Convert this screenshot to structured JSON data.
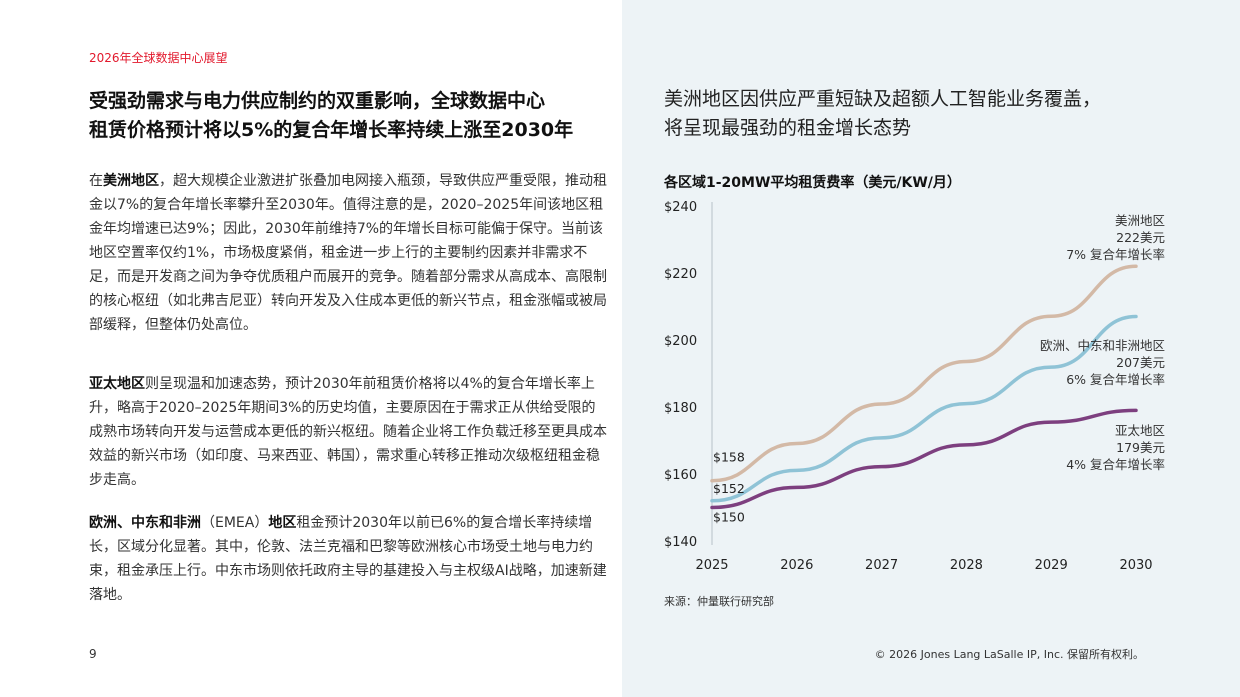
{
  "header": {
    "doc_title": "2026年全球数据中心展望",
    "headline_line1": "受强劲需求与电力供应制约的双重影响，全球数据中心",
    "headline_line2": "租赁价格预计将以5%的复合年增长率持续上涨至2030年"
  },
  "body": {
    "p1_bold": "美洲地区",
    "p1_text": "，超大规模企业激进扩张叠加电网接入瓶颈，导致供应严重受限，推动租金以7%的复合年增长率攀升至2030年。值得注意的是，2020–2025年间该地区租金年均增速已达9%；因此，2030年前维持7%的年增长目标可能偏于保守。当前该地区空置率仅约1%，市场极度紧俏，租金进一步上行的主要制约因素并非需求不足，而是开发商之间为争夺优质租户而展开的竞争。随着部分需求从高成本、高限制的核心枢纽（如北弗吉尼亚）转向开发及入住成本更低的新兴节点，租金涨幅或被局部缓释，但整体仍处高位。",
    "p2_bold": "亚太地区",
    "p2_text": "则呈现温和加速态势，预计2030年前租赁价格将以4%的复合年增长率上升，略高于2020–2025年期间3%的历史均值，主要原因在于需求正从供给受限的成熟市场转向开发与运营成本更低的新兴枢纽。随着企业将工作负载迁移至更具成本效益的新兴市场（如印度、马来西亚、韩国），需求重心转移正推动次级枢纽租金稳步走高。",
    "p3_bold": "欧洲、中东和非洲",
    "p3_mid": "（EMEA）",
    "p3_bold2": "地区",
    "p3_text": "租金预计2030年以前已6%的复合增长率持续增长，区域分化显著。其中，伦敦、法兰克福和巴黎等欧洲核心市场受土地与电力约束，租金承压上行。中东市场则依托政府主导的基建投入与主权级AI战略，加速新建落地。"
  },
  "footer": {
    "page_number": "9",
    "copyright": "© 2026 Jones Lang LaSalle IP, Inc. 保留所有权利。"
  },
  "chart_heading": {
    "line1": "美洲地区因供应严重短缺及超额人工智能业务覆盖，",
    "line2": "将呈现最强劲的租金增长态势"
  },
  "chart_data": {
    "type": "line",
    "title": "各区域1-20MW平均租赁费率（美元/KW/月）",
    "x": [
      "2025",
      "2026",
      "2027",
      "2028",
      "2029",
      "2030"
    ],
    "ylim": [
      140,
      240
    ],
    "yticks": [
      "$140",
      "$160",
      "$180",
      "$200",
      "$220",
      "$240"
    ],
    "grid": false,
    "series": [
      {
        "name": "美洲地区",
        "color": "#d3b9a6",
        "values": [
          158,
          169.1,
          180.9,
          193.6,
          207.1,
          222
        ],
        "start_label": "$158",
        "annotation": [
          "美洲地区",
          "222美元",
          "7% 复合年增长率"
        ]
      },
      {
        "name": "欧洲、中东和非洲地区",
        "color": "#8fc3d6",
        "values": [
          152,
          161.1,
          170.8,
          181.0,
          191.9,
          207
        ],
        "start_label": "$152",
        "annotation": [
          "欧洲、中东和非洲地区",
          "207美元",
          "6% 复合年增长率"
        ]
      },
      {
        "name": "亚太地区",
        "color": "#7d3f7f",
        "values": [
          150,
          156,
          162.2,
          168.7,
          175.5,
          179
        ],
        "start_label": "$150",
        "annotation": [
          "亚太地区",
          "179美元",
          "4% 复合年增长率"
        ]
      }
    ],
    "source": "来源：仲量联行研究部"
  }
}
